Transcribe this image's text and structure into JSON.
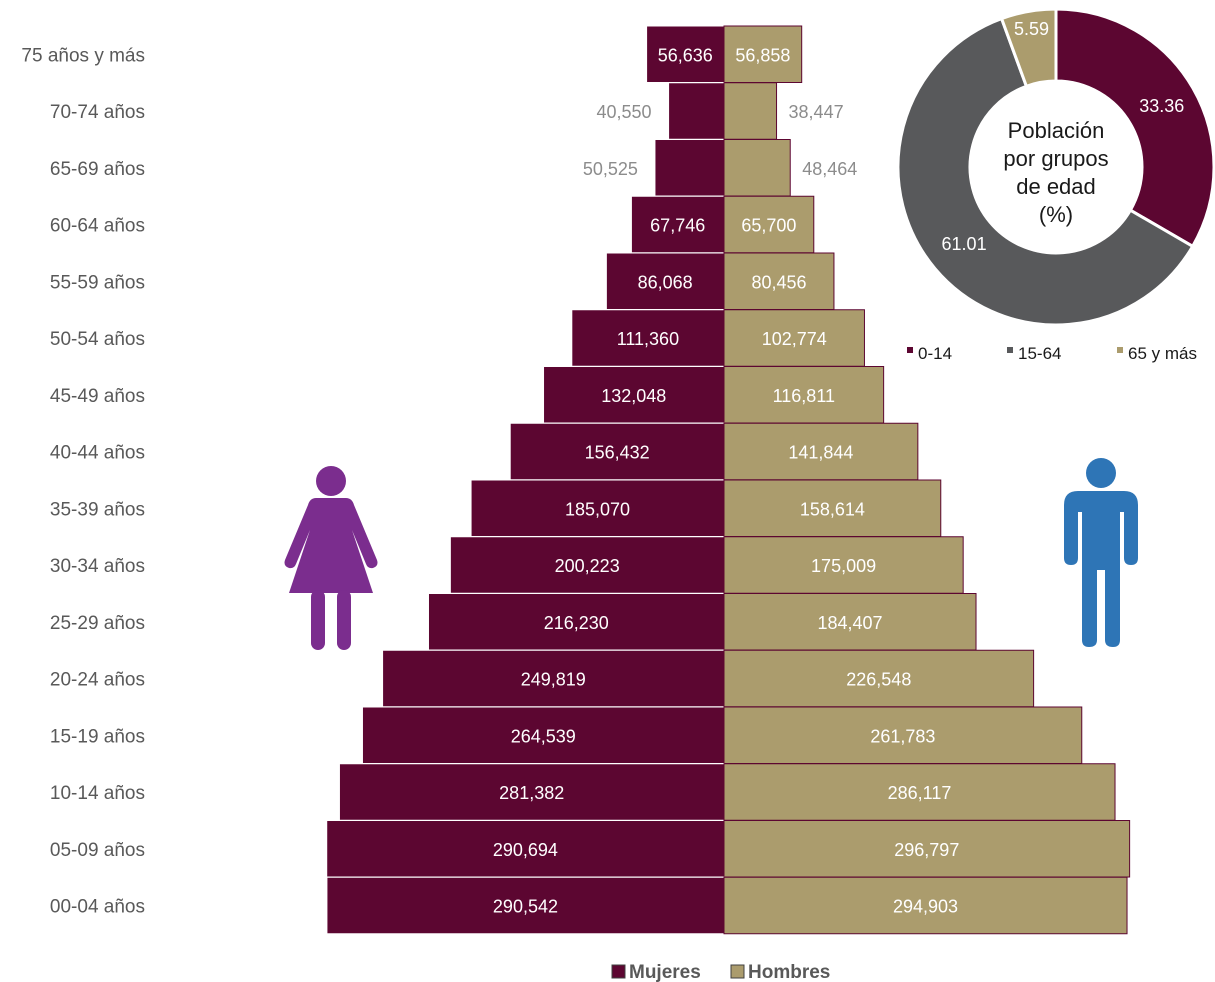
{
  "chart_data": [
    {
      "type": "bar",
      "categories": [
        "75 años y más",
        "70-74 años",
        "65-69 años",
        "60-64 años",
        "55-59 años",
        "50-54 años",
        "45-49 años",
        "40-44 años",
        "35-39 años",
        "30-34 años",
        "25-29 años",
        "20-24 años",
        "15-19 años",
        "10-14 años",
        "05-09 años",
        "00-04 años"
      ],
      "series": [
        {
          "name": "Mujeres",
          "values": [
            56636,
            40550,
            50525,
            67746,
            86068,
            111360,
            132048,
            156432,
            185070,
            200223,
            216230,
            249819,
            264539,
            281382,
            290694,
            290542
          ],
          "labels": [
            "56,636",
            "40,550",
            "50,525",
            "67,746",
            "86,068",
            "111,360",
            "132,048",
            "156,432",
            "185,070",
            "200,223",
            "216,230",
            "249,819",
            "264,539",
            "281,382",
            "290,694",
            "290,542"
          ]
        },
        {
          "name": "Hombres",
          "values": [
            56858,
            38447,
            48464,
            65700,
            80456,
            102774,
            116811,
            141844,
            158614,
            175009,
            184407,
            226548,
            261783,
            286117,
            296797,
            294903
          ],
          "labels": [
            "56,858",
            "38,447",
            "48,464",
            "65,700",
            "80,456",
            "102,774",
            "116,811",
            "141,844",
            "158,614",
            "175,009",
            "184,407",
            "226,548",
            "261,783",
            "286,117",
            "296,797",
            "294,903"
          ]
        }
      ],
      "colors": {
        "Mujeres": "#5c0631",
        "Hombres": "#ab9c6d"
      },
      "outside_label_color": "#8c8c8c"
    },
    {
      "type": "pie",
      "title_lines": [
        "Población",
        "por grupos",
        "de edad",
        "(%)"
      ],
      "categories": [
        "0-14",
        "15-64",
        "65 y más"
      ],
      "values": [
        33.36,
        61.01,
        5.59
      ],
      "labels": [
        "33.36",
        "61.01",
        "5.59"
      ],
      "colors": [
        "#5c0631",
        "#58595b",
        "#ab9c6d"
      ]
    }
  ],
  "icons": {
    "woman": "woman-icon",
    "man": "man-icon",
    "woman_color": "#7b2d8e",
    "man_color": "#2e75b6"
  }
}
